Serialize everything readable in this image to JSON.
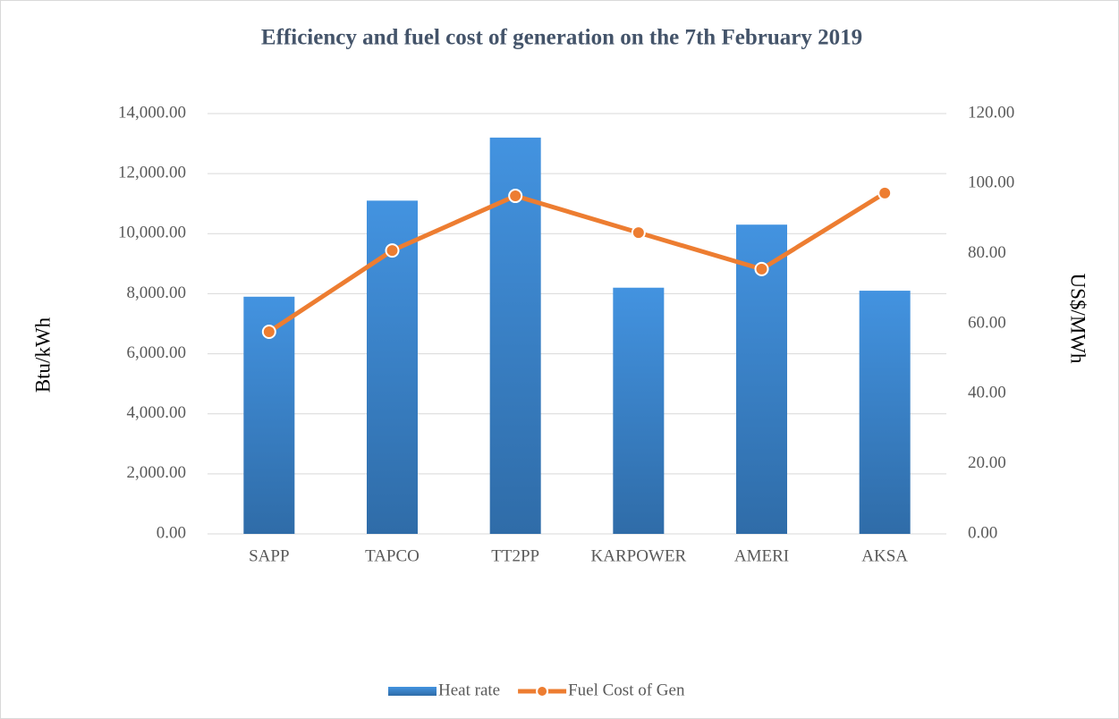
{
  "chart_data": {
    "type": "bar",
    "title": "Efficiency and fuel cost of  generation on the 7th February 2019",
    "y_label": "Btu/kWh",
    "y2_label": "US$/MWh",
    "categories": [
      "SAPP",
      "TAPCO",
      "TT2PP",
      "KARPOWER",
      "AMERI",
      "AKSA"
    ],
    "series": [
      {
        "name": "Heat rate",
        "type": "bar",
        "color": "#4393e0",
        "values": [
          7900,
          11100,
          13200,
          8200,
          10300,
          8100
        ]
      },
      {
        "name": "Fuel Cost of Gen",
        "type": "line",
        "axis": "y2",
        "color": "#ed7d31",
        "values": [
          57.7,
          80.9,
          96.5,
          86.0,
          75.6,
          97.3
        ]
      }
    ],
    "ylim": [
      0,
      14000
    ],
    "yticks": [
      {
        "value": 0,
        "label": "0.00"
      },
      {
        "value": 2000,
        "label": "2,000.00"
      },
      {
        "value": 4000,
        "label": "4,000.00"
      },
      {
        "value": 6000,
        "label": "6,000.00"
      },
      {
        "value": 8000,
        "label": "8,000.00"
      },
      {
        "value": 10000,
        "label": "10,000.00"
      },
      {
        "value": 12000,
        "label": "12,000.00"
      },
      {
        "value": 14000,
        "label": "14,000.00"
      }
    ],
    "y2lim": [
      0,
      120
    ],
    "y2ticks": [
      {
        "value": 0,
        "label": "0.00"
      },
      {
        "value": 20,
        "label": "20.00"
      },
      {
        "value": 40,
        "label": "40.00"
      },
      {
        "value": 60,
        "label": "60.00"
      },
      {
        "value": 80,
        "label": "80.00"
      },
      {
        "value": 100,
        "label": "100.00"
      },
      {
        "value": 120,
        "label": "120.00"
      }
    ],
    "grid": true,
    "legend": "bottom"
  }
}
